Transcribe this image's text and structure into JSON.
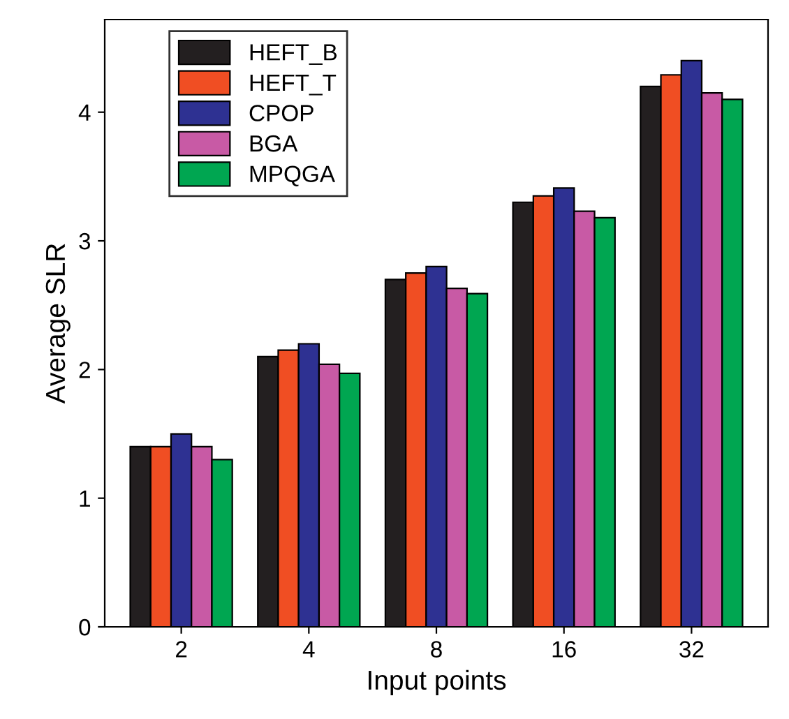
{
  "chart_data": {
    "type": "bar",
    "xlabel": "Input points",
    "ylabel": "Average SLR",
    "categories": [
      "2",
      "4",
      "8",
      "16",
      "32"
    ],
    "series": [
      {
        "name": "HEFT_B",
        "color": "#231f20",
        "values": [
          1.4,
          2.1,
          2.7,
          3.3,
          4.2
        ]
      },
      {
        "name": "HEFT_T",
        "color": "#f04e23",
        "values": [
          1.4,
          2.15,
          2.75,
          3.35,
          4.29
        ]
      },
      {
        "name": "CPOP",
        "color": "#2e3192",
        "values": [
          1.5,
          2.2,
          2.8,
          3.41,
          4.4
        ]
      },
      {
        "name": "BGA",
        "color": "#c85aa5",
        "values": [
          1.4,
          2.04,
          2.63,
          3.23,
          4.15
        ]
      },
      {
        "name": "MPQGA",
        "color": "#00a651",
        "values": [
          1.3,
          1.97,
          2.59,
          3.18,
          4.1
        ]
      }
    ],
    "ylim": [
      0,
      4.72
    ],
    "yticks": [
      0,
      1,
      2,
      3,
      4
    ],
    "grid": false,
    "legend": "top left"
  }
}
